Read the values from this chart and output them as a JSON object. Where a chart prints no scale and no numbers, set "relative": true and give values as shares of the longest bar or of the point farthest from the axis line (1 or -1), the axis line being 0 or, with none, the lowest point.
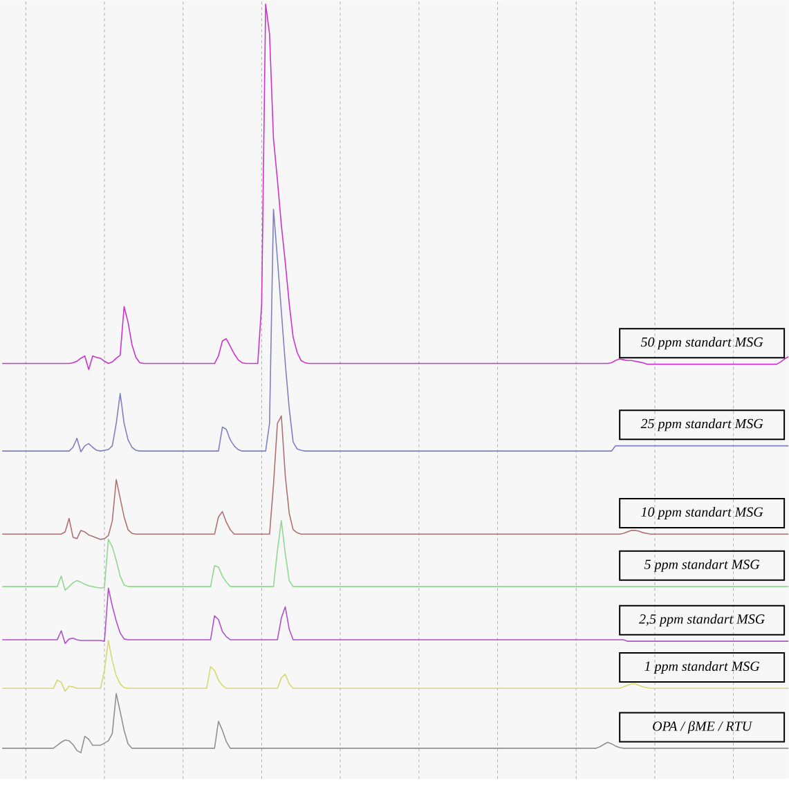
{
  "chart_data": {
    "type": "line",
    "relative": true,
    "grid": "x",
    "marker": "none",
    "line_style": "solid",
    "categories": [
      null,
      null,
      null,
      null,
      null,
      null,
      null,
      null,
      null,
      null,
      null,
      null,
      null,
      null,
      null,
      null,
      null,
      null,
      null,
      null,
      null,
      null,
      null,
      null,
      null,
      null,
      null,
      null,
      null,
      null,
      null,
      null,
      null,
      null,
      null,
      null,
      null,
      null,
      null,
      null,
      null,
      null,
      null,
      null,
      null,
      null,
      null,
      null,
      null,
      null,
      null,
      null,
      null,
      null,
      null,
      null,
      null,
      null,
      null,
      null,
      null,
      null,
      null,
      null,
      null,
      null,
      null,
      null,
      null,
      null,
      null,
      null,
      null,
      null,
      null,
      null,
      null,
      null,
      null,
      null,
      null,
      null,
      null,
      null,
      null,
      null,
      null,
      null,
      null,
      null,
      null,
      null,
      null,
      null,
      null,
      null,
      null,
      null,
      null,
      null,
      null,
      null,
      null,
      null,
      null,
      null,
      null,
      null,
      null,
      null,
      null,
      null,
      null,
      null,
      null,
      null,
      null,
      null,
      null,
      null,
      null,
      null,
      null,
      null,
      null,
      null,
      null,
      null,
      null,
      null,
      null,
      null,
      null,
      null,
      null,
      null,
      null,
      null,
      null,
      null,
      null,
      null,
      null,
      null,
      null,
      null,
      null,
      null,
      null,
      null,
      null,
      null,
      null,
      null,
      null,
      null,
      null,
      null,
      null,
      null,
      null,
      null,
      null,
      null,
      null,
      null,
      null,
      null,
      null,
      null,
      null,
      null,
      null,
      null,
      null,
      null,
      null,
      null,
      null,
      null,
      null,
      null,
      null,
      null,
      null,
      null,
      null,
      null,
      null,
      null,
      null,
      null,
      null,
      null,
      null,
      null,
      null,
      null,
      null,
      null,
      null
    ],
    "series": [
      {
        "name": "50 ppm standart MSG",
        "color": "#cc33cc",
        "values": [
          0.52,
          0.52,
          0.52,
          0.52,
          0.52,
          0.52,
          0.52,
          0.52,
          0.52,
          0.52,
          0.52,
          0.52,
          0.52,
          0.52,
          0.52,
          0.52,
          0.52,
          0.52,
          0.521,
          0.523,
          0.527,
          0.53,
          0.512,
          0.53,
          0.528,
          0.527,
          0.523,
          0.52,
          0.522,
          0.527,
          0.531,
          0.596,
          0.575,
          0.545,
          0.528,
          0.521,
          0.52,
          0.52,
          0.52,
          0.52,
          0.52,
          0.52,
          0.52,
          0.52,
          0.52,
          0.52,
          0.52,
          0.52,
          0.52,
          0.52,
          0.52,
          0.52,
          0.52,
          0.52,
          0.52,
          0.53,
          0.55,
          0.553,
          0.543,
          0.533,
          0.525,
          0.521,
          0.52,
          0.52,
          0.52,
          0.52,
          0.6,
          1.0,
          0.96,
          0.82,
          0.765,
          0.705,
          0.655,
          0.6,
          0.555,
          0.535,
          0.524,
          0.521,
          0.52,
          0.52,
          0.52,
          0.52,
          0.52,
          0.52,
          0.52,
          0.52,
          0.52,
          0.52,
          0.52,
          0.52,
          0.52,
          0.52,
          0.52,
          0.52,
          0.52,
          0.52,
          0.52,
          0.52,
          0.52,
          0.52,
          0.52,
          0.52,
          0.52,
          0.52,
          0.52,
          0.52,
          0.52,
          0.52,
          0.52,
          0.52,
          0.52,
          0.52,
          0.52,
          0.52,
          0.52,
          0.52,
          0.52,
          0.52,
          0.52,
          0.52,
          0.52,
          0.52,
          0.52,
          0.52,
          0.52,
          0.52,
          0.52,
          0.52,
          0.52,
          0.52,
          0.52,
          0.52,
          0.52,
          0.52,
          0.52,
          0.52,
          0.52,
          0.52,
          0.52,
          0.52,
          0.52,
          0.52,
          0.52,
          0.52,
          0.52,
          0.52,
          0.52,
          0.52,
          0.52,
          0.52,
          0.52,
          0.52,
          0.52,
          0.52,
          0.52,
          0.521,
          0.524,
          0.526,
          0.525,
          0.524,
          0.524,
          0.523,
          0.522,
          0.521,
          0.519,
          0.519,
          0.519,
          0.519,
          0.519,
          0.519,
          0.519,
          0.519,
          0.519,
          0.519,
          0.519,
          0.519,
          0.519,
          0.519,
          0.519,
          0.519,
          0.519,
          0.519,
          0.519,
          0.519,
          0.519,
          0.519,
          0.519,
          0.519,
          0.519,
          0.519,
          0.519,
          0.519,
          0.519,
          0.519,
          0.519,
          0.519,
          0.519,
          0.519,
          0.522,
          0.526,
          0.529
        ]
      },
      {
        "name": "25 ppm standart MSG",
        "color": "#7f7fc0",
        "values": [
          0.403,
          0.403,
          0.403,
          0.403,
          0.403,
          0.403,
          0.403,
          0.403,
          0.403,
          0.403,
          0.403,
          0.403,
          0.403,
          0.403,
          0.403,
          0.403,
          0.403,
          0.403,
          0.408,
          0.42,
          0.402,
          0.41,
          0.413,
          0.408,
          0.404,
          0.403,
          0.404,
          0.405,
          0.41,
          0.44,
          0.48,
          0.44,
          0.418,
          0.408,
          0.404,
          0.403,
          0.403,
          0.403,
          0.403,
          0.403,
          0.403,
          0.403,
          0.403,
          0.403,
          0.403,
          0.403,
          0.403,
          0.403,
          0.403,
          0.403,
          0.403,
          0.403,
          0.403,
          0.403,
          0.403,
          0.403,
          0.435,
          0.432,
          0.418,
          0.41,
          0.405,
          0.403,
          0.403,
          0.403,
          0.403,
          0.403,
          0.403,
          0.403,
          0.44,
          0.726,
          0.66,
          0.59,
          0.52,
          0.46,
          0.415,
          0.406,
          0.404,
          0.403,
          0.403,
          0.403,
          0.403,
          0.403,
          0.403,
          0.403,
          0.403,
          0.403,
          0.403,
          0.403,
          0.403,
          0.403,
          0.403,
          0.403,
          0.403,
          0.403,
          0.403,
          0.403,
          0.403,
          0.403,
          0.403,
          0.403,
          0.403,
          0.403,
          0.403,
          0.403,
          0.403,
          0.403,
          0.403,
          0.403,
          0.403,
          0.403,
          0.403,
          0.403,
          0.403,
          0.403,
          0.403,
          0.403,
          0.403,
          0.403,
          0.403,
          0.403,
          0.403,
          0.403,
          0.403,
          0.403,
          0.403,
          0.403,
          0.403,
          0.403,
          0.403,
          0.403,
          0.403,
          0.403,
          0.403,
          0.403,
          0.403,
          0.403,
          0.403,
          0.403,
          0.403,
          0.403,
          0.403,
          0.403,
          0.403,
          0.403,
          0.403,
          0.403,
          0.403,
          0.403,
          0.403,
          0.403,
          0.403,
          0.403,
          0.403,
          0.403,
          0.403,
          0.403,
          0.41,
          0.41,
          0.41,
          0.41,
          0.41,
          0.41,
          0.41,
          0.41,
          0.41,
          0.41,
          0.41,
          0.41,
          0.41,
          0.41,
          0.41,
          0.41,
          0.41,
          0.41,
          0.41,
          0.41,
          0.41,
          0.41,
          0.41,
          0.41,
          0.41,
          0.41,
          0.41,
          0.41,
          0.41,
          0.41,
          0.41,
          0.41,
          0.41,
          0.41,
          0.41,
          0.41,
          0.41,
          0.41,
          0.41,
          0.41,
          0.41,
          0.41,
          0.41,
          0.41,
          0.41
        ]
      },
      {
        "name": "10 ppm standart MSG",
        "color": "#b07070",
        "values": [
          0.292,
          0.292,
          0.292,
          0.292,
          0.292,
          0.292,
          0.292,
          0.292,
          0.292,
          0.292,
          0.292,
          0.292,
          0.292,
          0.292,
          0.292,
          0.292,
          0.295,
          0.313,
          0.288,
          0.286,
          0.297,
          0.295,
          0.291,
          0.289,
          0.287,
          0.285,
          0.286,
          0.29,
          0.31,
          0.365,
          0.34,
          0.315,
          0.298,
          0.293,
          0.292,
          0.292,
          0.292,
          0.292,
          0.292,
          0.292,
          0.292,
          0.292,
          0.292,
          0.292,
          0.292,
          0.292,
          0.292,
          0.292,
          0.292,
          0.292,
          0.292,
          0.292,
          0.292,
          0.292,
          0.292,
          0.315,
          0.322,
          0.308,
          0.298,
          0.292,
          0.292,
          0.292,
          0.292,
          0.292,
          0.292,
          0.292,
          0.292,
          0.292,
          0.292,
          0.358,
          0.44,
          0.45,
          0.37,
          0.32,
          0.298,
          0.294,
          0.292,
          0.292,
          0.292,
          0.292,
          0.292,
          0.292,
          0.292,
          0.292,
          0.292,
          0.292,
          0.292,
          0.292,
          0.292,
          0.292,
          0.292,
          0.292,
          0.292,
          0.292,
          0.292,
          0.292,
          0.292,
          0.292,
          0.292,
          0.292,
          0.292,
          0.292,
          0.292,
          0.292,
          0.292,
          0.292,
          0.292,
          0.292,
          0.292,
          0.292,
          0.292,
          0.292,
          0.292,
          0.292,
          0.292,
          0.292,
          0.292,
          0.292,
          0.292,
          0.292,
          0.292,
          0.292,
          0.292,
          0.292,
          0.292,
          0.292,
          0.292,
          0.292,
          0.292,
          0.292,
          0.292,
          0.292,
          0.292,
          0.292,
          0.292,
          0.292,
          0.292,
          0.292,
          0.292,
          0.292,
          0.292,
          0.292,
          0.292,
          0.292,
          0.292,
          0.292,
          0.292,
          0.292,
          0.292,
          0.292,
          0.292,
          0.292,
          0.292,
          0.292,
          0.292,
          0.292,
          0.292,
          0.292,
          0.293,
          0.295,
          0.297,
          0.297,
          0.296,
          0.294,
          0.293,
          0.292,
          0.292,
          0.292,
          0.292,
          0.292,
          0.292,
          0.292,
          0.292,
          0.292,
          0.292,
          0.292,
          0.292,
          0.292,
          0.292,
          0.292,
          0.292,
          0.292,
          0.292,
          0.292,
          0.292,
          0.292,
          0.292,
          0.292,
          0.292,
          0.292,
          0.292,
          0.292,
          0.292,
          0.292,
          0.292,
          0.292,
          0.292,
          0.292,
          0.292,
          0.292,
          0.292
        ]
      },
      {
        "name": "5 ppm standart MSG",
        "color": "#90d890",
        "values": [
          0.222,
          0.222,
          0.222,
          0.222,
          0.222,
          0.222,
          0.222,
          0.222,
          0.222,
          0.222,
          0.222,
          0.222,
          0.222,
          0.222,
          0.222,
          0.236,
          0.217,
          0.222,
          0.227,
          0.23,
          0.228,
          0.225,
          0.223,
          0.222,
          0.221,
          0.22,
          0.221,
          0.285,
          0.275,
          0.257,
          0.236,
          0.224,
          0.222,
          0.222,
          0.222,
          0.222,
          0.222,
          0.222,
          0.222,
          0.222,
          0.222,
          0.222,
          0.222,
          0.222,
          0.222,
          0.222,
          0.222,
          0.222,
          0.222,
          0.222,
          0.222,
          0.222,
          0.222,
          0.222,
          0.25,
          0.248,
          0.236,
          0.228,
          0.222,
          0.222,
          0.222,
          0.222,
          0.222,
          0.222,
          0.222,
          0.222,
          0.222,
          0.222,
          0.222,
          0.222,
          0.27,
          0.31,
          0.266,
          0.23,
          0.222,
          0.222,
          0.222,
          0.222,
          0.222,
          0.222,
          0.222,
          0.222,
          0.222,
          0.222,
          0.222,
          0.222,
          0.222,
          0.222,
          0.222,
          0.222,
          0.222,
          0.222,
          0.222,
          0.222,
          0.222,
          0.222,
          0.222,
          0.222,
          0.222,
          0.222,
          0.222,
          0.222,
          0.222,
          0.222,
          0.222,
          0.222,
          0.222,
          0.222,
          0.222,
          0.222,
          0.222,
          0.222,
          0.222,
          0.222,
          0.222,
          0.222,
          0.222,
          0.222,
          0.222,
          0.222,
          0.222,
          0.222,
          0.222,
          0.222,
          0.222,
          0.222,
          0.222,
          0.222,
          0.222,
          0.222,
          0.222,
          0.222,
          0.222,
          0.222,
          0.222,
          0.222,
          0.222,
          0.222,
          0.222,
          0.222,
          0.222,
          0.222,
          0.222,
          0.222,
          0.222,
          0.222,
          0.222,
          0.222,
          0.222,
          0.222,
          0.222,
          0.222,
          0.222,
          0.222,
          0.222,
          0.222,
          0.222,
          0.222,
          0.222,
          0.222,
          0.222,
          0.222,
          0.222,
          0.222,
          0.222,
          0.222,
          0.222,
          0.222,
          0.222,
          0.222,
          0.222,
          0.222,
          0.222,
          0.222,
          0.222,
          0.222,
          0.222,
          0.222,
          0.222,
          0.222,
          0.222,
          0.222,
          0.222,
          0.222,
          0.222,
          0.222,
          0.222,
          0.222,
          0.222,
          0.222,
          0.222,
          0.222,
          0.222,
          0.222,
          0.222,
          0.222,
          0.222,
          0.222,
          0.222,
          0.222,
          0.222
        ]
      },
      {
        "name": "2,5 ppm standart MSG",
        "color": "#b050d0",
        "values": [
          0.151,
          0.151,
          0.151,
          0.151,
          0.151,
          0.151,
          0.151,
          0.151,
          0.151,
          0.151,
          0.151,
          0.151,
          0.151,
          0.151,
          0.151,
          0.163,
          0.146,
          0.152,
          0.153,
          0.151,
          0.15,
          0.15,
          0.15,
          0.15,
          0.15,
          0.15,
          0.149,
          0.22,
          0.196,
          0.176,
          0.16,
          0.152,
          0.151,
          0.151,
          0.151,
          0.151,
          0.151,
          0.151,
          0.151,
          0.151,
          0.151,
          0.151,
          0.151,
          0.151,
          0.151,
          0.151,
          0.151,
          0.151,
          0.151,
          0.151,
          0.151,
          0.151,
          0.151,
          0.151,
          0.183,
          0.178,
          0.162,
          0.155,
          0.151,
          0.151,
          0.151,
          0.151,
          0.151,
          0.151,
          0.151,
          0.151,
          0.151,
          0.151,
          0.151,
          0.151,
          0.151,
          0.18,
          0.195,
          0.165,
          0.151,
          0.151,
          0.151,
          0.151,
          0.151,
          0.151,
          0.151,
          0.151,
          0.151,
          0.151,
          0.151,
          0.151,
          0.151,
          0.151,
          0.151,
          0.151,
          0.151,
          0.151,
          0.151,
          0.151,
          0.151,
          0.151,
          0.151,
          0.151,
          0.151,
          0.151,
          0.151,
          0.151,
          0.151,
          0.151,
          0.151,
          0.151,
          0.151,
          0.151,
          0.151,
          0.151,
          0.151,
          0.151,
          0.151,
          0.151,
          0.151,
          0.151,
          0.151,
          0.151,
          0.151,
          0.151,
          0.151,
          0.151,
          0.151,
          0.151,
          0.151,
          0.151,
          0.151,
          0.151,
          0.151,
          0.151,
          0.151,
          0.151,
          0.151,
          0.151,
          0.151,
          0.151,
          0.151,
          0.151,
          0.151,
          0.151,
          0.151,
          0.151,
          0.151,
          0.151,
          0.151,
          0.151,
          0.151,
          0.151,
          0.151,
          0.151,
          0.151,
          0.151,
          0.151,
          0.151,
          0.151,
          0.151,
          0.151,
          0.151,
          0.151,
          0.149,
          0.149,
          0.149,
          0.149,
          0.149,
          0.149,
          0.149,
          0.149,
          0.149,
          0.149,
          0.149,
          0.149,
          0.149,
          0.149,
          0.149,
          0.149,
          0.149,
          0.149,
          0.149,
          0.149,
          0.149,
          0.149,
          0.149,
          0.149,
          0.149,
          0.149,
          0.149,
          0.149,
          0.149,
          0.149,
          0.149,
          0.149,
          0.149,
          0.149,
          0.149,
          0.149,
          0.149,
          0.149,
          0.149,
          0.149,
          0.149,
          0.149
        ]
      },
      {
        "name": "1 ppm standart MSG",
        "color": "#d8d870",
        "values": [
          0.086,
          0.086,
          0.086,
          0.086,
          0.086,
          0.086,
          0.086,
          0.086,
          0.086,
          0.086,
          0.086,
          0.086,
          0.086,
          0.086,
          0.097,
          0.094,
          0.082,
          0.089,
          0.088,
          0.086,
          0.086,
          0.086,
          0.086,
          0.086,
          0.086,
          0.086,
          0.11,
          0.15,
          0.123,
          0.103,
          0.092,
          0.087,
          0.086,
          0.086,
          0.086,
          0.086,
          0.086,
          0.086,
          0.086,
          0.086,
          0.086,
          0.086,
          0.086,
          0.086,
          0.086,
          0.086,
          0.086,
          0.086,
          0.086,
          0.086,
          0.086,
          0.086,
          0.086,
          0.115,
          0.11,
          0.097,
          0.09,
          0.086,
          0.086,
          0.086,
          0.086,
          0.086,
          0.086,
          0.086,
          0.086,
          0.086,
          0.086,
          0.086,
          0.086,
          0.086,
          0.086,
          0.1,
          0.105,
          0.092,
          0.086,
          0.086,
          0.086,
          0.086,
          0.086,
          0.086,
          0.086,
          0.086,
          0.086,
          0.086,
          0.086,
          0.086,
          0.086,
          0.086,
          0.086,
          0.086,
          0.086,
          0.086,
          0.086,
          0.086,
          0.086,
          0.086,
          0.086,
          0.086,
          0.086,
          0.086,
          0.086,
          0.086,
          0.086,
          0.086,
          0.086,
          0.086,
          0.086,
          0.086,
          0.086,
          0.086,
          0.086,
          0.086,
          0.086,
          0.086,
          0.086,
          0.086,
          0.086,
          0.086,
          0.086,
          0.086,
          0.086,
          0.086,
          0.086,
          0.086,
          0.086,
          0.086,
          0.086,
          0.086,
          0.086,
          0.086,
          0.086,
          0.086,
          0.086,
          0.086,
          0.086,
          0.086,
          0.086,
          0.086,
          0.086,
          0.086,
          0.086,
          0.086,
          0.086,
          0.086,
          0.086,
          0.086,
          0.086,
          0.086,
          0.086,
          0.086,
          0.086,
          0.086,
          0.086,
          0.086,
          0.086,
          0.086,
          0.086,
          0.086,
          0.088,
          0.09,
          0.092,
          0.092,
          0.09,
          0.088,
          0.087,
          0.086,
          0.086,
          0.086,
          0.086,
          0.086,
          0.086,
          0.086,
          0.086,
          0.086,
          0.086,
          0.086,
          0.086,
          0.086,
          0.086,
          0.086,
          0.086,
          0.086,
          0.086,
          0.086,
          0.086,
          0.086,
          0.086,
          0.086,
          0.086,
          0.086,
          0.086,
          0.086,
          0.086,
          0.086,
          0.086,
          0.086,
          0.086,
          0.086,
          0.086,
          0.086,
          0.086
        ]
      },
      {
        "name": "OPA / βME / RTU",
        "color": "#909090",
        "values": [
          0.006,
          0.006,
          0.006,
          0.006,
          0.006,
          0.006,
          0.006,
          0.006,
          0.006,
          0.006,
          0.006,
          0.006,
          0.006,
          0.006,
          0.01,
          0.014,
          0.017,
          0.016,
          0.011,
          0.003,
          0.0,
          0.022,
          0.018,
          0.01,
          0.01,
          0.01,
          0.013,
          0.016,
          0.026,
          0.079,
          0.055,
          0.03,
          0.012,
          0.006,
          0.006,
          0.006,
          0.006,
          0.006,
          0.006,
          0.006,
          0.006,
          0.006,
          0.006,
          0.006,
          0.006,
          0.006,
          0.006,
          0.006,
          0.006,
          0.006,
          0.006,
          0.006,
          0.006,
          0.006,
          0.006,
          0.042,
          0.03,
          0.015,
          0.006,
          0.006,
          0.006,
          0.006,
          0.006,
          0.006,
          0.006,
          0.006,
          0.006,
          0.006,
          0.006,
          0.006,
          0.006,
          0.006,
          0.006,
          0.006,
          0.006,
          0.006,
          0.006,
          0.006,
          0.006,
          0.006,
          0.006,
          0.006,
          0.006,
          0.006,
          0.006,
          0.006,
          0.006,
          0.006,
          0.006,
          0.006,
          0.006,
          0.006,
          0.006,
          0.006,
          0.006,
          0.006,
          0.006,
          0.006,
          0.006,
          0.006,
          0.006,
          0.006,
          0.006,
          0.006,
          0.006,
          0.006,
          0.006,
          0.006,
          0.006,
          0.006,
          0.006,
          0.006,
          0.006,
          0.006,
          0.006,
          0.006,
          0.006,
          0.006,
          0.006,
          0.006,
          0.006,
          0.006,
          0.006,
          0.006,
          0.006,
          0.006,
          0.006,
          0.006,
          0.006,
          0.006,
          0.006,
          0.006,
          0.006,
          0.006,
          0.006,
          0.006,
          0.006,
          0.006,
          0.006,
          0.006,
          0.006,
          0.006,
          0.006,
          0.006,
          0.006,
          0.006,
          0.006,
          0.006,
          0.006,
          0.006,
          0.006,
          0.006,
          0.008,
          0.011,
          0.014,
          0.012,
          0.009,
          0.007,
          0.006,
          0.006,
          0.006,
          0.006,
          0.006,
          0.006,
          0.006,
          0.006,
          0.006,
          0.006,
          0.006,
          0.006,
          0.006,
          0.006,
          0.006,
          0.006,
          0.006,
          0.006,
          0.006,
          0.006,
          0.006,
          0.006,
          0.006,
          0.006,
          0.006,
          0.006,
          0.006,
          0.006,
          0.006,
          0.006,
          0.006,
          0.006,
          0.006,
          0.006,
          0.006,
          0.006,
          0.006,
          0.006,
          0.006,
          0.006,
          0.006,
          0.006,
          0.006
        ]
      }
    ]
  }
}
